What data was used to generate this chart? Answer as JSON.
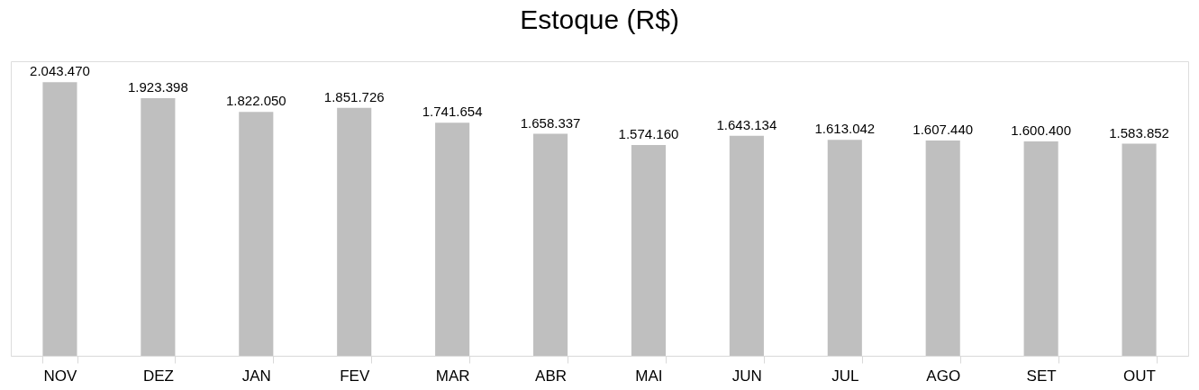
{
  "chart_data": {
    "type": "bar",
    "title": "Estoque (R$)",
    "categories": [
      "NOV",
      "DEZ",
      "JAN",
      "FEV",
      "MAR",
      "ABR",
      "MAI",
      "JUN",
      "JUL",
      "AGO",
      "SET",
      "OUT"
    ],
    "values": [
      2043470,
      1923398,
      1822050,
      1851726,
      1741654,
      1658337,
      1574160,
      1643134,
      1613042,
      1607440,
      1600400,
      1583852
    ],
    "value_labels": [
      "2.043.470",
      "1.923.398",
      "1.822.050",
      "1.851.726",
      "1.741.654",
      "1.658.337",
      "1.574.160",
      "1.643.134",
      "1.613.042",
      "1.607.440",
      "1.600.400",
      "1.583.852"
    ],
    "color": "#bfbfbf"
  }
}
